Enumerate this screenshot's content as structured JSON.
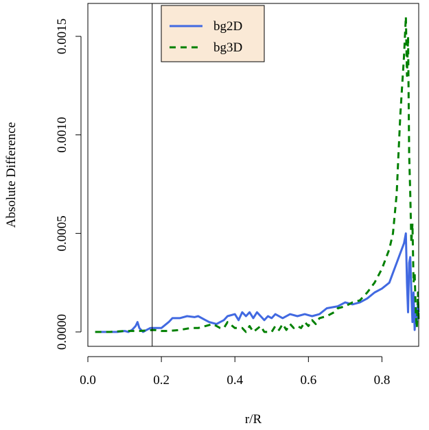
{
  "chart_data": {
    "type": "line",
    "title": "",
    "xlabel": "r/R",
    "ylabel": "Absolute Difference",
    "xlim": [
      0.0,
      0.9
    ],
    "ylim": [
      0.0,
      0.0016
    ],
    "x_ticks": [
      "0.0",
      "0.2",
      "0.4",
      "0.6",
      "0.8"
    ],
    "y_ticks": [
      "0.0000",
      "0.0005",
      "0.0010",
      "0.0015"
    ],
    "legend_position": "top-left",
    "legend_background": "#fae9d6",
    "vertical_reference_line_x": 0.175,
    "series": [
      {
        "name": "bg2D",
        "color": "#4169e1",
        "dash": "solid",
        "points": [
          [
            0.02,
            0.0
          ],
          [
            0.05,
            0.0
          ],
          [
            0.08,
            0.0
          ],
          [
            0.1,
            5e-06
          ],
          [
            0.11,
            0.0
          ],
          [
            0.12,
            1e-05
          ],
          [
            0.13,
            3e-05
          ],
          [
            0.135,
            5e-05
          ],
          [
            0.14,
            2e-05
          ],
          [
            0.15,
            0.0
          ],
          [
            0.16,
            1e-05
          ],
          [
            0.17,
            2e-05
          ],
          [
            0.18,
            2e-05
          ],
          [
            0.2,
            2e-05
          ],
          [
            0.22,
            5e-05
          ],
          [
            0.23,
            7e-05
          ],
          [
            0.25,
            7e-05
          ],
          [
            0.27,
            8e-05
          ],
          [
            0.29,
            7.5e-05
          ],
          [
            0.3,
            8e-05
          ],
          [
            0.32,
            6e-05
          ],
          [
            0.33,
            5e-05
          ],
          [
            0.35,
            4e-05
          ],
          [
            0.36,
            5e-05
          ],
          [
            0.37,
            6e-05
          ],
          [
            0.38,
            8e-05
          ],
          [
            0.4,
            9e-05
          ],
          [
            0.41,
            6e-05
          ],
          [
            0.42,
            0.0001
          ],
          [
            0.43,
            8e-05
          ],
          [
            0.44,
            0.0001
          ],
          [
            0.45,
            7e-05
          ],
          [
            0.46,
            0.0001
          ],
          [
            0.47,
            8e-05
          ],
          [
            0.48,
            6e-05
          ],
          [
            0.49,
            8e-05
          ],
          [
            0.5,
            7e-05
          ],
          [
            0.51,
            9e-05
          ],
          [
            0.53,
            7e-05
          ],
          [
            0.55,
            9e-05
          ],
          [
            0.57,
            8e-05
          ],
          [
            0.59,
            9e-05
          ],
          [
            0.61,
            8e-05
          ],
          [
            0.63,
            9e-05
          ],
          [
            0.65,
            0.00012
          ],
          [
            0.68,
            0.00013
          ],
          [
            0.7,
            0.00015
          ],
          [
            0.72,
            0.00014
          ],
          [
            0.74,
            0.00015
          ],
          [
            0.76,
            0.00017
          ],
          [
            0.78,
            0.0002
          ],
          [
            0.8,
            0.00022
          ],
          [
            0.82,
            0.00025
          ],
          [
            0.83,
            0.0003
          ],
          [
            0.84,
            0.00035
          ],
          [
            0.85,
            0.0004
          ],
          [
            0.86,
            0.00045
          ],
          [
            0.865,
            0.0005
          ],
          [
            0.868,
            0.00025
          ],
          [
            0.871,
            0.0001
          ],
          [
            0.874,
            0.00035
          ],
          [
            0.877,
            0.00038
          ],
          [
            0.88,
            0.0002
          ],
          [
            0.883,
            5e-05
          ],
          [
            0.886,
            0.0002
          ],
          [
            0.889,
            1e-05
          ],
          [
            0.892,
            0.00012
          ],
          [
            0.895,
            5e-05
          ],
          [
            0.898,
            0.00015
          ],
          [
            0.9,
            0.0001
          ]
        ]
      },
      {
        "name": "bg3D",
        "color": "#008000",
        "dash": "dashed",
        "points": [
          [
            0.02,
            0.0
          ],
          [
            0.06,
            0.0
          ],
          [
            0.1,
            5e-06
          ],
          [
            0.14,
            5e-06
          ],
          [
            0.18,
            1e-05
          ],
          [
            0.2,
            5e-06
          ],
          [
            0.22,
            5e-06
          ],
          [
            0.25,
            1e-05
          ],
          [
            0.28,
            2e-05
          ],
          [
            0.3,
            2e-05
          ],
          [
            0.32,
            3e-05
          ],
          [
            0.34,
            4e-05
          ],
          [
            0.36,
            2e-05
          ],
          [
            0.37,
            2e-05
          ],
          [
            0.38,
            5e-05
          ],
          [
            0.4,
            2e-05
          ],
          [
            0.42,
            2e-05
          ],
          [
            0.43,
            0.0
          ],
          [
            0.44,
            3e-05
          ],
          [
            0.45,
            0.0
          ],
          [
            0.47,
            3e-05
          ],
          [
            0.48,
            0.0
          ],
          [
            0.5,
            0.0
          ],
          [
            0.51,
            3e-05
          ],
          [
            0.52,
            1e-05
          ],
          [
            0.53,
            4e-05
          ],
          [
            0.54,
            1e-05
          ],
          [
            0.55,
            4e-05
          ],
          [
            0.56,
            2e-05
          ],
          [
            0.57,
            3e-05
          ],
          [
            0.58,
            2e-05
          ],
          [
            0.59,
            5e-05
          ],
          [
            0.6,
            3e-05
          ],
          [
            0.61,
            6e-05
          ],
          [
            0.62,
            4e-05
          ],
          [
            0.63,
            7e-05
          ],
          [
            0.65,
            8e-05
          ],
          [
            0.67,
            0.0001
          ],
          [
            0.68,
            0.00012
          ],
          [
            0.7,
            0.00013
          ],
          [
            0.72,
            0.00015
          ],
          [
            0.74,
            0.00016
          ],
          [
            0.76,
            0.0002
          ],
          [
            0.78,
            0.00025
          ],
          [
            0.8,
            0.00032
          ],
          [
            0.82,
            0.00042
          ],
          [
            0.83,
            0.0005
          ],
          [
            0.84,
            0.0007
          ],
          [
            0.845,
            0.0009
          ],
          [
            0.85,
            0.0011
          ],
          [
            0.855,
            0.00125
          ],
          [
            0.86,
            0.0014
          ],
          [
            0.865,
            0.0016
          ],
          [
            0.868,
            0.0013
          ],
          [
            0.871,
            0.0015
          ],
          [
            0.874,
            0.0009
          ],
          [
            0.877,
            0.0007
          ],
          [
            0.88,
            0.00045
          ],
          [
            0.883,
            0.00055
          ],
          [
            0.886,
            0.00025
          ],
          [
            0.889,
            0.0003
          ],
          [
            0.892,
            0.0001
          ],
          [
            0.895,
            2e-05
          ],
          [
            0.898,
            0.0002
          ],
          [
            0.9,
            5e-05
          ]
        ]
      }
    ]
  }
}
